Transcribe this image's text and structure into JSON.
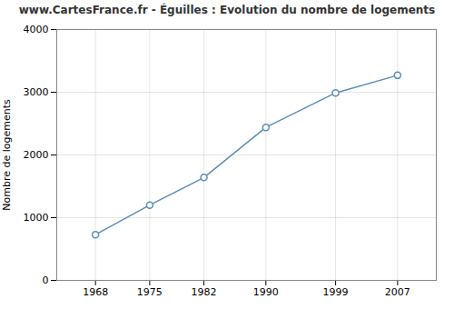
{
  "chart_data": {
    "type": "line",
    "title": "www.CartesFrance.fr - Éguilles : Evolution du nombre de logements",
    "ylabel": "Nombre de logements",
    "x": [
      1968,
      1975,
      1982,
      1990,
      1999,
      2007
    ],
    "values": [
      730,
      1200,
      1640,
      2440,
      2990,
      3270
    ],
    "xlim": [
      1963,
      2012
    ],
    "ylim": [
      0,
      4000
    ],
    "xticks": [
      1968,
      1975,
      1982,
      1990,
      1999,
      2007
    ],
    "yticks": [
      0,
      1000,
      2000,
      3000,
      4000
    ],
    "color": "#5b8db8",
    "marker": "circle",
    "grid": true
  }
}
